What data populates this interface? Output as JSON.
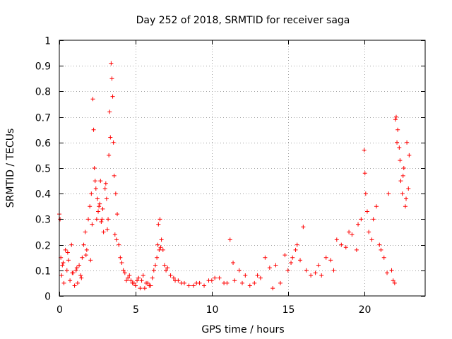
{
  "chart_data": {
    "type": "scatter",
    "title": "Day 252 of 2018, SRMTID for receiver saga",
    "xlabel": "GPS time / hours",
    "ylabel": "SRMTID / TECUs",
    "xlim": [
      0,
      24
    ],
    "ylim": [
      0,
      1
    ],
    "xticks": [
      0,
      5,
      10,
      15,
      20
    ],
    "yticks": [
      0,
      0.1,
      0.2,
      0.3,
      0.4,
      0.5,
      0.6,
      0.7,
      0.8,
      0.9,
      1
    ],
    "xtick_labels": [
      "0",
      "5",
      "10",
      "15",
      "20"
    ],
    "ytick_labels": [
      "0",
      "0.1",
      "0.2",
      "0.3",
      "0.4",
      "0.5",
      "0.6",
      "0.7",
      "0.8",
      "0.9",
      "1"
    ],
    "grid": true,
    "marker": "+",
    "marker_color": "#ff0000",
    "series": [
      {
        "name": "SRMTID",
        "x": [
          0.0,
          0.05,
          0.1,
          0.15,
          0.2,
          0.3,
          0.4,
          0.5,
          0.6,
          0.7,
          0.8,
          0.9,
          1.0,
          1.1,
          1.2,
          1.3,
          1.4,
          1.5,
          1.6,
          1.7,
          1.8,
          1.9,
          2.0,
          2.1,
          2.15,
          2.2,
          2.25,
          2.3,
          2.35,
          2.4,
          2.45,
          2.5,
          2.6,
          2.7,
          2.8,
          2.9,
          3.0,
          3.1,
          3.2,
          3.25,
          3.3,
          3.35,
          3.4,
          3.45,
          3.5,
          3.55,
          3.6,
          3.7,
          3.8,
          3.9,
          4.0,
          4.2,
          4.4,
          4.6,
          4.8,
          5.0,
          5.2,
          5.4,
          5.6,
          5.8,
          6.0,
          6.2,
          6.4,
          6.5,
          6.6,
          6.7,
          6.8,
          7.0,
          7.3,
          7.6,
          8.0,
          8.5,
          9.0,
          9.5,
          10.0,
          10.5,
          11.0,
          11.2,
          11.5,
          12.0,
          12.5,
          13.0,
          13.5,
          14.0,
          14.5,
          15.0,
          15.3,
          15.6,
          16.0,
          16.5,
          17.0,
          17.5,
          18.0,
          18.5,
          19.0,
          19.5,
          19.8,
          20.0,
          20.05,
          20.1,
          20.3,
          20.6,
          21.0,
          21.3,
          21.6,
          21.8,
          22.0,
          22.1,
          22.2,
          22.3,
          22.4,
          22.5,
          22.6,
          22.7,
          22.8,
          22.9,
          0.25,
          0.55,
          0.85,
          1.15,
          1.45,
          1.75,
          2.05,
          2.55,
          2.65,
          2.75,
          2.85,
          3.05,
          3.15,
          3.65,
          3.75,
          4.1,
          4.3,
          4.5,
          4.7,
          4.9,
          5.1,
          5.3,
          5.5,
          5.7,
          5.9,
          6.1,
          6.3,
          6.45,
          6.55,
          6.65,
          6.9,
          7.1,
          7.5,
          7.8,
          8.2,
          8.8,
          9.2,
          9.8,
          10.2,
          10.8,
          11.4,
          11.8,
          12.2,
          12.8,
          13.2,
          13.8,
          14.2,
          14.8,
          15.2,
          15.5,
          15.8,
          16.2,
          16.8,
          17.2,
          17.8,
          18.2,
          18.8,
          19.2,
          19.6,
          20.2,
          20.5,
          20.8,
          21.1,
          21.5,
          21.9,
          22.05,
          22.15,
          22.35,
          22.55,
          22.75,
          22.95
        ],
        "y": [
          0.32,
          0.3,
          0.15,
          0.08,
          0.12,
          0.05,
          0.18,
          0.1,
          0.14,
          0.06,
          0.2,
          0.09,
          0.04,
          0.1,
          0.05,
          0.12,
          0.08,
          0.15,
          0.2,
          0.25,
          0.18,
          0.3,
          0.35,
          0.4,
          0.28,
          0.77,
          0.65,
          0.5,
          0.45,
          0.42,
          0.3,
          0.38,
          0.35,
          0.45,
          0.3,
          0.25,
          0.42,
          0.38,
          0.3,
          0.55,
          0.72,
          0.62,
          0.91,
          0.85,
          0.78,
          0.6,
          0.47,
          0.4,
          0.32,
          0.2,
          0.15,
          0.1,
          0.06,
          0.08,
          0.05,
          0.04,
          0.07,
          0.06,
          0.03,
          0.05,
          0.04,
          0.1,
          0.15,
          0.28,
          0.3,
          0.22,
          0.18,
          0.1,
          0.08,
          0.06,
          0.05,
          0.04,
          0.05,
          0.04,
          0.06,
          0.07,
          0.05,
          0.22,
          0.06,
          0.05,
          0.04,
          0.08,
          0.15,
          0.03,
          0.05,
          0.1,
          0.15,
          0.2,
          0.27,
          0.08,
          0.12,
          0.15,
          0.1,
          0.2,
          0.25,
          0.18,
          0.3,
          0.57,
          0.48,
          0.4,
          0.25,
          0.3,
          0.2,
          0.15,
          0.4,
          0.1,
          0.05,
          0.7,
          0.65,
          0.58,
          0.45,
          0.4,
          0.5,
          0.35,
          0.6,
          0.42,
          0.13,
          0.17,
          0.09,
          0.11,
          0.07,
          0.16,
          0.14,
          0.33,
          0.36,
          0.29,
          0.34,
          0.44,
          0.26,
          0.24,
          0.22,
          0.13,
          0.09,
          0.07,
          0.06,
          0.05,
          0.06,
          0.03,
          0.08,
          0.05,
          0.04,
          0.07,
          0.12,
          0.2,
          0.18,
          0.19,
          0.12,
          0.11,
          0.07,
          0.06,
          0.05,
          0.04,
          0.05,
          0.06,
          0.07,
          0.05,
          0.13,
          0.1,
          0.08,
          0.05,
          0.07,
          0.11,
          0.12,
          0.16,
          0.13,
          0.18,
          0.14,
          0.1,
          0.09,
          0.08,
          0.14,
          0.22,
          0.19,
          0.24,
          0.28,
          0.33,
          0.22,
          0.35,
          0.18,
          0.09,
          0.06,
          0.69,
          0.6,
          0.53,
          0.47,
          0.38,
          0.55
        ]
      }
    ]
  }
}
